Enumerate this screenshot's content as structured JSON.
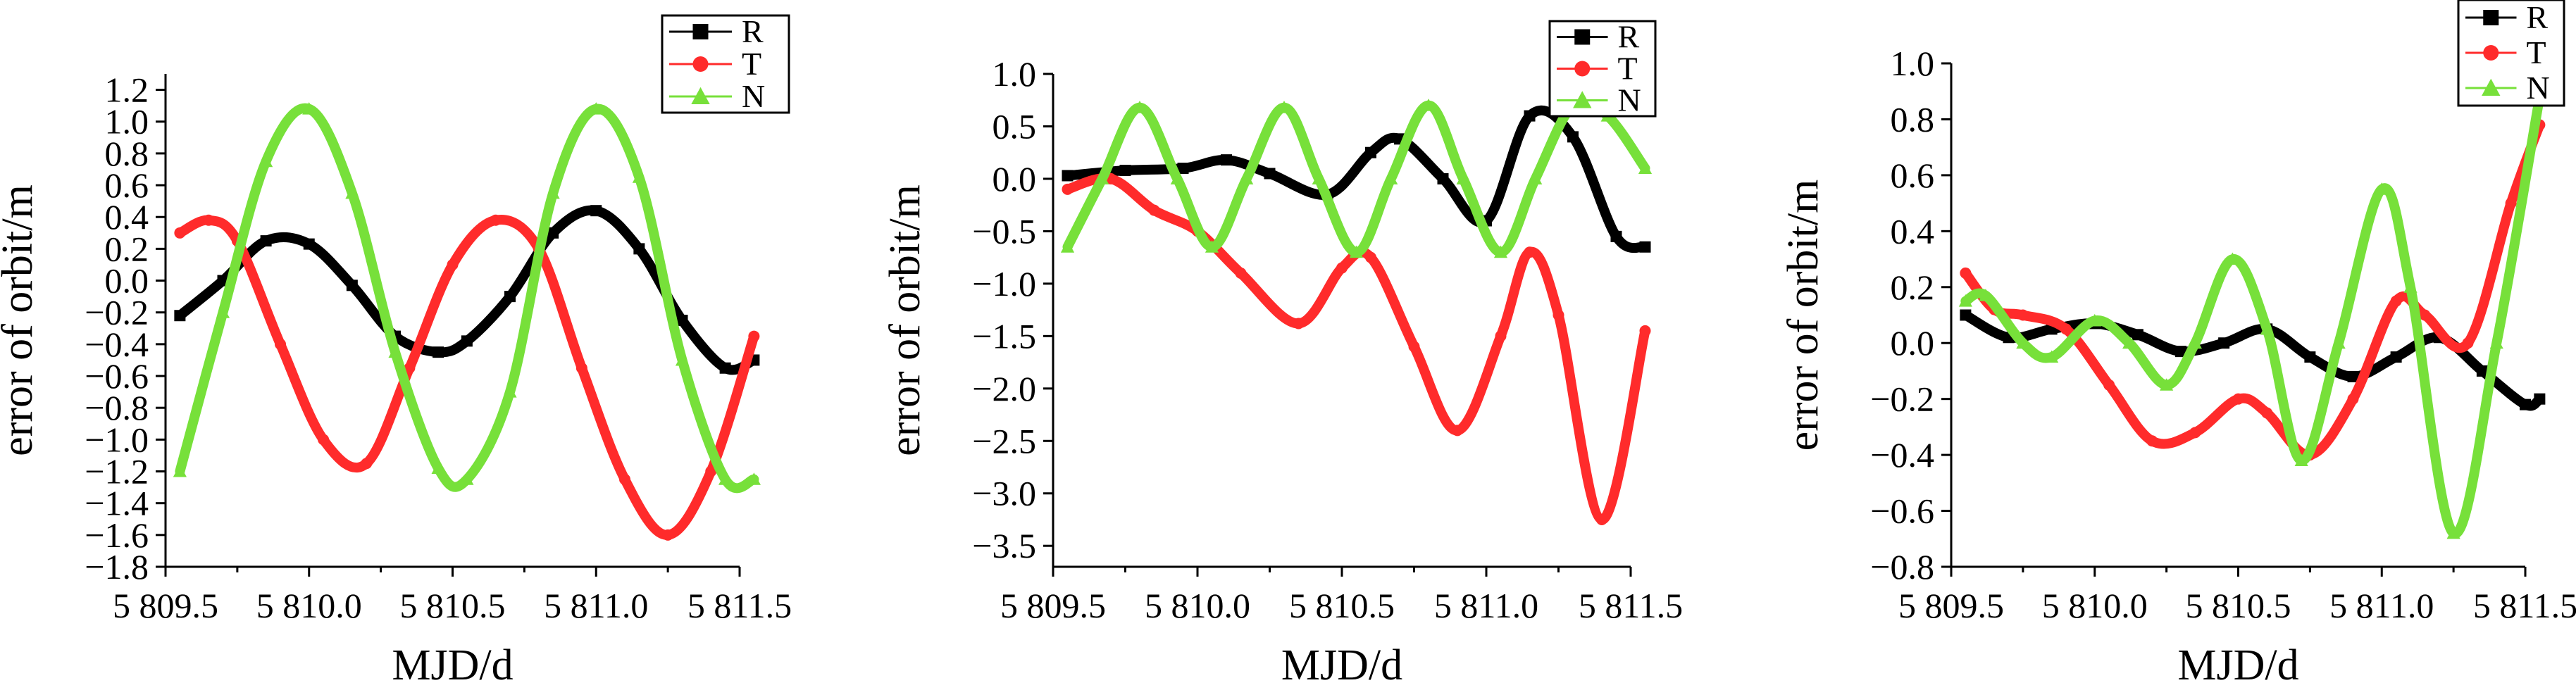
{
  "chart_data": [
    {
      "type": "line",
      "xlabel": "MJD/d",
      "ylabel": "error of orbit/m",
      "xlim": [
        58809.5,
        58811.5
      ],
      "ylim": [
        -1.8,
        1.3
      ],
      "xticks": [
        58809.5,
        58810.0,
        58810.5,
        58811.0,
        58811.5
      ],
      "xtick_labels": [
        "5 809.5",
        "5 810.0",
        "5 810.5",
        "5 811.0",
        "5 811.5"
      ],
      "yticks": [
        -1.8,
        -1.4,
        -1.0,
        -0.6,
        -0.2,
        0.2,
        0.6,
        1.0
      ],
      "ytick_labels": [
        "−1.8",
        "−1.4",
        "−1.0",
        "−0.6",
        "−0.2",
        "0.2",
        "0.6",
        "1.0"
      ],
      "ytick_labels_right": [
        "−1.6",
        "−1.2",
        "−0.8",
        "−0.4",
        "0.0",
        "0.4",
        "0.8",
        "1.2"
      ],
      "yticks_right": [
        -1.6,
        -1.2,
        -0.8,
        -0.4,
        0.0,
        0.4,
        0.8,
        1.2
      ],
      "legend_position": "top-right",
      "series": [
        {
          "name": "R",
          "color": "#000000",
          "marker": "square",
          "x": [
            58809.55,
            58809.7,
            58809.85,
            58810.0,
            58810.15,
            58810.3,
            58810.45,
            58810.55,
            58810.7,
            58810.85,
            58811.0,
            58811.15,
            58811.3,
            58811.45,
            58811.55
          ],
          "y": [
            -0.22,
            0.0,
            0.25,
            0.23,
            -0.03,
            -0.35,
            -0.45,
            -0.38,
            -0.1,
            0.3,
            0.44,
            0.2,
            -0.25,
            -0.55,
            -0.5
          ]
        },
        {
          "name": "T",
          "color": "#ff2b2b",
          "marker": "circle",
          "x": [
            58809.55,
            58809.65,
            58809.75,
            58809.9,
            58810.05,
            58810.2,
            58810.35,
            58810.5,
            58810.65,
            58810.8,
            58810.95,
            58811.1,
            58811.25,
            58811.4,
            58811.55
          ],
          "y": [
            0.3,
            0.38,
            0.25,
            -0.4,
            -1.0,
            -1.15,
            -0.55,
            0.1,
            0.38,
            0.2,
            -0.55,
            -1.25,
            -1.6,
            -1.2,
            -0.35
          ]
        },
        {
          "name": "N",
          "color": "#77e03a",
          "marker": "triangle",
          "x": [
            58809.55,
            58809.7,
            58809.85,
            58810.0,
            58810.15,
            58810.3,
            58810.45,
            58810.55,
            58810.7,
            58810.85,
            58811.0,
            58811.15,
            58811.3,
            58811.45,
            58811.55
          ],
          "y": [
            -1.2,
            -0.2,
            0.75,
            1.08,
            0.55,
            -0.45,
            -1.18,
            -1.25,
            -0.7,
            0.55,
            1.08,
            0.65,
            -0.5,
            -1.25,
            -1.25
          ]
        }
      ]
    },
    {
      "type": "line",
      "xlabel": "MJD/d",
      "ylabel": "error of orbit/m",
      "xlim": [
        58809.5,
        58811.5
      ],
      "ylim": [
        -3.7,
        1.0
      ],
      "xticks": [
        58809.5,
        58810.0,
        58810.5,
        58811.0,
        58811.5
      ],
      "xtick_labels": [
        "5 809.5",
        "5 810.0",
        "5 810.5",
        "5 811.0",
        "5 811.5"
      ],
      "yticks": [
        1.0,
        0.5,
        0.0,
        -0.5,
        -1.0,
        -1.5,
        -2.0,
        -2.5,
        -3.0,
        -3.5
      ],
      "ytick_labels": [
        "1.0",
        "0.5",
        "0.0",
        "−0.5",
        "−1.0",
        "−1.5",
        "−2.0",
        "−2.5",
        "−3.0",
        "−3.5"
      ],
      "legend_position": "top-right",
      "series": [
        {
          "name": "R",
          "color": "#000000",
          "marker": "square",
          "x": [
            58809.55,
            58809.75,
            58809.95,
            58810.1,
            58810.25,
            58810.45,
            58810.6,
            58810.7,
            58810.85,
            58811.0,
            58811.15,
            58811.3,
            58811.45,
            58811.55
          ],
          "y": [
            0.03,
            0.08,
            0.1,
            0.18,
            0.05,
            -0.15,
            0.25,
            0.38,
            0.0,
            -0.4,
            0.6,
            0.4,
            -0.55,
            -0.65
          ]
        },
        {
          "name": "T",
          "color": "#ff2b2b",
          "marker": "circle",
          "x": [
            58809.55,
            58809.7,
            58809.85,
            58810.0,
            58810.15,
            58810.35,
            58810.5,
            58810.6,
            58810.75,
            58810.9,
            58811.05,
            58811.15,
            58811.25,
            58811.4,
            58811.55
          ],
          "y": [
            -0.1,
            0.0,
            -0.3,
            -0.5,
            -0.9,
            -1.38,
            -0.85,
            -0.75,
            -1.6,
            -2.4,
            -1.5,
            -0.7,
            -1.3,
            -3.25,
            -1.45
          ]
        },
        {
          "name": "N",
          "color": "#77e03a",
          "marker": "triangle",
          "x": [
            58809.55,
            58809.67,
            58809.8,
            58809.93,
            58810.05,
            58810.17,
            58810.3,
            58810.42,
            58810.55,
            58810.67,
            58810.8,
            58810.92,
            58811.05,
            58811.17,
            58811.3,
            58811.42,
            58811.55
          ],
          "y": [
            -0.65,
            0.0,
            0.68,
            0.0,
            -0.65,
            0.0,
            0.68,
            0.0,
            -0.7,
            0.0,
            0.7,
            0.0,
            -0.7,
            0.0,
            0.7,
            0.6,
            0.1
          ]
        }
      ]
    },
    {
      "type": "line",
      "xlabel": "MJD/d",
      "ylabel": "error of orbit/m",
      "xlim": [
        58809.5,
        58811.5
      ],
      "ylim": [
        -0.8,
        1.0
      ],
      "xticks": [
        58809.5,
        58810.0,
        58810.5,
        58811.0,
        58811.5
      ],
      "xtick_labels": [
        "5 809.5",
        "5 810.0",
        "5 810.5",
        "5 811.0",
        "5 811.5"
      ],
      "yticks": [
        1.0,
        0.8,
        0.6,
        0.4,
        0.2,
        0.0,
        -0.2,
        -0.4,
        -0.6,
        -0.8
      ],
      "ytick_labels": [
        "1.0",
        "0.8",
        "0.6",
        "0.4",
        "0.2",
        "0.0",
        "−0.2",
        "−0.4",
        "−0.6",
        "−0.8"
      ],
      "legend_position": "top-right",
      "series": [
        {
          "name": "R",
          "color": "#000000",
          "marker": "square",
          "x": [
            58809.55,
            58809.7,
            58809.85,
            58810.0,
            58810.15,
            58810.3,
            58810.45,
            58810.6,
            58810.75,
            58810.9,
            58811.05,
            58811.2,
            58811.35,
            58811.5,
            58811.55
          ],
          "y": [
            0.1,
            0.02,
            0.05,
            0.07,
            0.03,
            -0.03,
            0.0,
            0.05,
            -0.05,
            -0.12,
            -0.05,
            0.02,
            -0.1,
            -0.22,
            -0.2
          ]
        },
        {
          "name": "T",
          "color": "#ff2b2b",
          "marker": "circle",
          "x": [
            58809.55,
            58809.65,
            58809.75,
            58809.9,
            58810.05,
            58810.2,
            58810.35,
            58810.5,
            58810.6,
            58810.75,
            58810.9,
            58811.05,
            58811.15,
            58811.3,
            58811.45,
            58811.55
          ],
          "y": [
            0.25,
            0.12,
            0.1,
            0.05,
            -0.15,
            -0.35,
            -0.32,
            -0.2,
            -0.25,
            -0.4,
            -0.2,
            0.15,
            0.1,
            0.0,
            0.5,
            0.78
          ]
        },
        {
          "name": "N",
          "color": "#77e03a",
          "marker": "triangle",
          "x": [
            58809.55,
            58809.62,
            58809.75,
            58809.85,
            58810.0,
            58810.12,
            58810.25,
            58810.35,
            58810.48,
            58810.6,
            58810.72,
            58810.85,
            58811.0,
            58811.1,
            58811.25,
            58811.4,
            58811.55
          ],
          "y": [
            0.15,
            0.17,
            0.0,
            -0.05,
            0.08,
            0.0,
            -0.15,
            0.0,
            0.3,
            0.05,
            -0.42,
            0.0,
            0.55,
            0.2,
            -0.68,
            0.0,
            0.88
          ]
        }
      ]
    }
  ]
}
